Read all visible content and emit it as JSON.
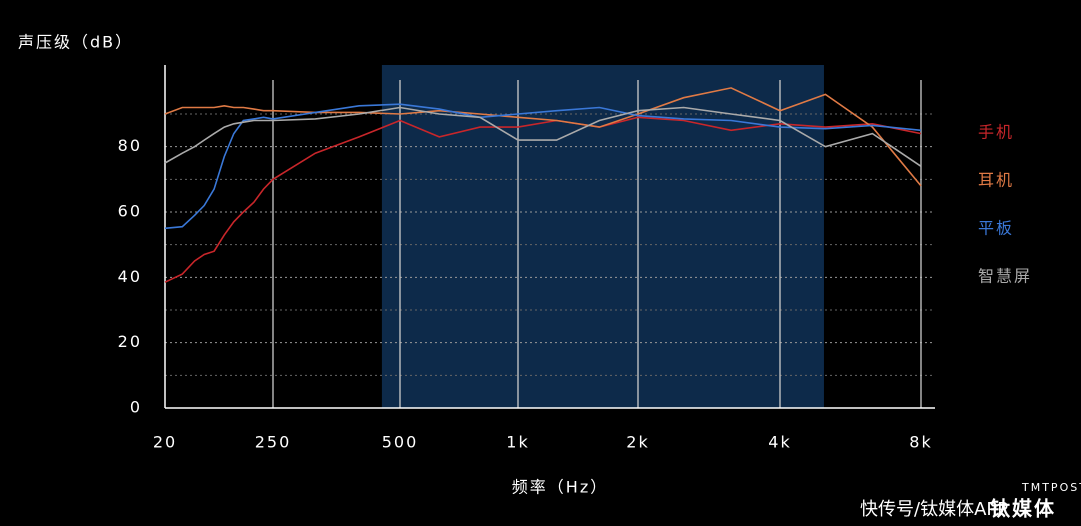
{
  "chart_data": {
    "type": "line",
    "y_label": "声压级（dB）",
    "x_label": "频率（Hz）",
    "x": [
      20,
      30,
      40,
      50,
      63,
      80,
      100,
      125,
      160,
      200,
      250,
      315,
      400,
      500,
      630,
      800,
      1000,
      1250,
      1600,
      2000,
      2500,
      3150,
      4000,
      5000,
      6300,
      8000
    ],
    "series": [
      {
        "name": "手机",
        "color": "#c8262a",
        "values": [
          38.5,
          41,
          45,
          47,
          48,
          53,
          57,
          60,
          63,
          67,
          70,
          78,
          83,
          88,
          83,
          86,
          86,
          88,
          86,
          89,
          88,
          85,
          87,
          86,
          87,
          84
        ]
      },
      {
        "name": "耳机",
        "color": "#e07a45",
        "values": [
          90,
          92,
          92,
          92,
          92,
          92.5,
          92,
          92,
          91.5,
          91,
          91,
          90.5,
          90.5,
          90,
          91,
          90,
          89,
          88,
          86,
          90,
          95,
          98,
          91,
          96,
          86,
          68
        ]
      },
      {
        "name": "平板",
        "color": "#3a78d8",
        "values": [
          55,
          55.5,
          59,
          62,
          67,
          77,
          84,
          88,
          88.5,
          89,
          88.5,
          90.5,
          92.5,
          93,
          91.5,
          89,
          90,
          91,
          92,
          89.5,
          88.5,
          88,
          86,
          85.5,
          86.5,
          85
        ]
      },
      {
        "name": "智慧屏",
        "color": "#aaaaaa",
        "values": [
          75,
          78,
          80,
          82,
          84,
          86,
          87,
          87.5,
          88,
          88,
          88,
          88.5,
          90,
          92,
          90,
          89,
          82,
          82,
          88,
          91,
          92,
          90,
          88,
          80,
          84,
          74
        ]
      }
    ],
    "highlight_range": [
      453,
      4965
    ],
    "highlight_color": "#0d2a4a",
    "xlim": [
      20,
      8000
    ],
    "xticks": [
      20,
      250,
      500,
      {
        "value": 1000,
        "label": "1k"
      },
      {
        "value": 2000,
        "label": "2k"
      },
      {
        "value": 4000,
        "label": "4k"
      },
      {
        "value": 8000,
        "label": "8k"
      }
    ],
    "ylim": [
      0,
      105
    ],
    "yticks": [
      0,
      20,
      40,
      60,
      80
    ],
    "minor_yticks": [
      10,
      30,
      50,
      70,
      90
    ],
    "grid": true,
    "legend": "right",
    "watermark": [
      "TMTPOST",
      "钛媒体",
      "快传号/钛媒体APP"
    ]
  }
}
